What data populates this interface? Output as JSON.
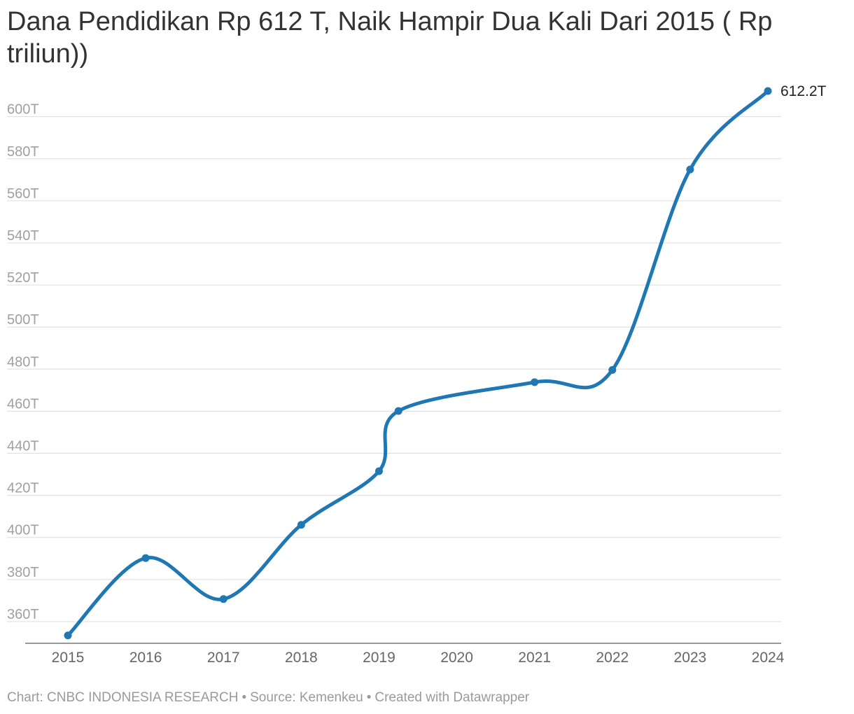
{
  "title": "Dana Pendidikan Rp 612 T, Naik Hampir Dua Kali Dari 2015 ( Rp triliun))",
  "footer": {
    "chart_credit": "Chart: CNBC INDONESIA RESEARCH",
    "source": "Source: Kemenkeu",
    "created_with": "Created with Datawrapper",
    "separator": "•"
  },
  "chart_data": {
    "type": "line",
    "title": "Dana Pendidikan Rp 612 T, Naik Hampir Dua Kali Dari 2015 ( Rp triliun))",
    "xlabel": "",
    "ylabel": "",
    "x_ticks": [
      "2015",
      "2016",
      "2017",
      "2018",
      "2019",
      "2020",
      "2021",
      "2022",
      "2023",
      "2024"
    ],
    "y_ticks": [
      {
        "value": 360,
        "label": "360T"
      },
      {
        "value": 380,
        "label": "380T"
      },
      {
        "value": 400,
        "label": "400T"
      },
      {
        "value": 420,
        "label": "420T"
      },
      {
        "value": 440,
        "label": "440T"
      },
      {
        "value": 460,
        "label": "460T"
      },
      {
        "value": 480,
        "label": "480T"
      },
      {
        "value": 500,
        "label": "500T"
      },
      {
        "value": 520,
        "label": "520T"
      },
      {
        "value": 540,
        "label": "540T"
      },
      {
        "value": 560,
        "label": "560T"
      },
      {
        "value": 580,
        "label": "580T"
      },
      {
        "value": 600,
        "label": "600T"
      }
    ],
    "xlim": [
      2015,
      2024
    ],
    "ylim": [
      352,
      612.2
    ],
    "grid": true,
    "color": "#1f77b4",
    "series": [
      {
        "points": [
          {
            "x": 2015.0,
            "y": 353.4
          },
          {
            "x": 2016.0,
            "y": 390.2
          },
          {
            "x": 2017.0,
            "y": 370.7
          },
          {
            "x": 2018.0,
            "y": 406.0
          },
          {
            "x": 2019.0,
            "y": 431.5
          },
          {
            "x": 2019.25,
            "y": 460.1
          },
          {
            "x": 2021.0,
            "y": 473.8
          },
          {
            "x": 2022.0,
            "y": 479.6
          },
          {
            "x": 2023.0,
            "y": 574.9
          },
          {
            "x": 2024.0,
            "y": 612.2
          }
        ]
      }
    ],
    "end_label": "612.2T"
  }
}
